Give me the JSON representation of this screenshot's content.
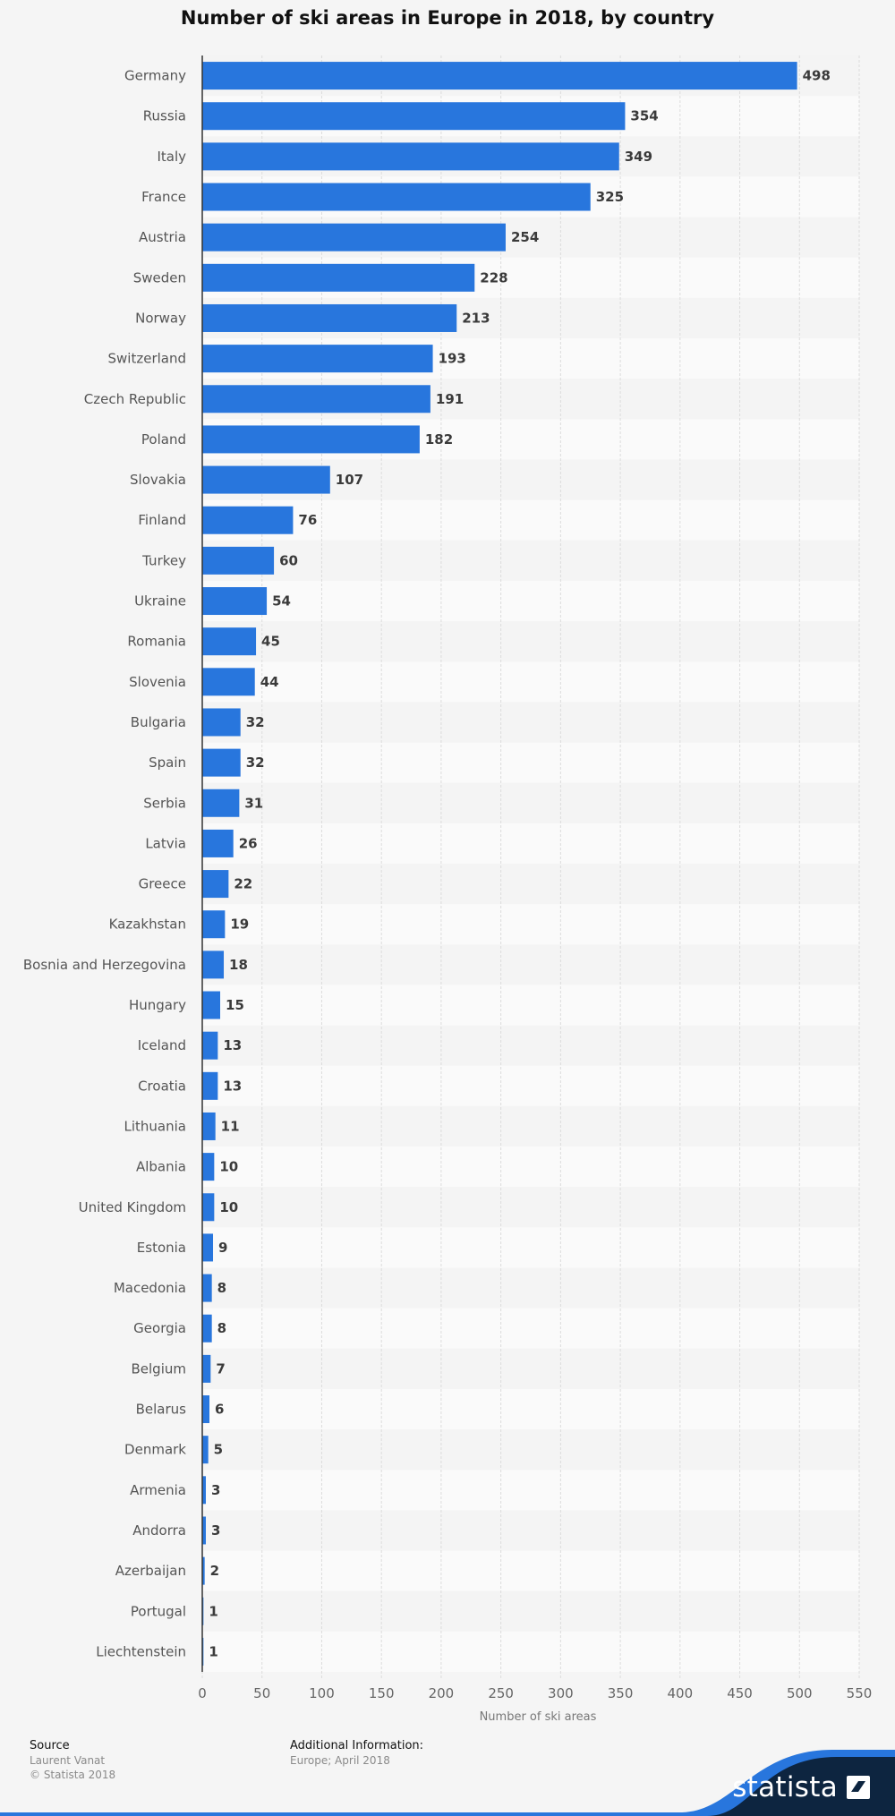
{
  "chart_data": {
    "type": "bar",
    "orientation": "horizontal",
    "title": "Number of ski areas in Europe in 2018, by country",
    "xlabel": "Number of ski areas",
    "ylabel": "",
    "xlim": [
      0,
      550
    ],
    "xticks": [
      "0",
      "50",
      "100",
      "150",
      "200",
      "250",
      "300",
      "350",
      "400",
      "450",
      "500",
      "550"
    ],
    "grid": true,
    "bar_color": "#2876dd",
    "categories": [
      "Germany",
      "Russia",
      "Italy",
      "France",
      "Austria",
      "Sweden",
      "Norway",
      "Switzerland",
      "Czech Republic",
      "Poland",
      "Slovakia",
      "Finland",
      "Turkey",
      "Ukraine",
      "Romania",
      "Slovenia",
      "Bulgaria",
      "Spain",
      "Serbia",
      "Latvia",
      "Greece",
      "Kazakhstan",
      "Bosnia and Herzegovina",
      "Hungary",
      "Iceland",
      "Croatia",
      "Lithuania",
      "Albania",
      "United Kingdom",
      "Estonia",
      "Macedonia",
      "Georgia",
      "Belgium",
      "Belarus",
      "Denmark",
      "Armenia",
      "Andorra",
      "Azerbaijan",
      "Portugal",
      "Liechtenstein"
    ],
    "values": [
      498,
      354,
      349,
      325,
      254,
      228,
      213,
      193,
      191,
      182,
      107,
      76,
      60,
      54,
      45,
      44,
      32,
      32,
      31,
      26,
      22,
      19,
      18,
      15,
      13,
      13,
      11,
      10,
      10,
      9,
      8,
      8,
      7,
      6,
      5,
      3,
      3,
      2,
      1,
      1
    ]
  },
  "footer": {
    "source_heading": "Source",
    "source_lines": [
      "Laurent Vanat",
      "© Statista 2018"
    ],
    "info_heading": "Additional Information:",
    "info_lines": [
      "Europe; April 2018"
    ]
  },
  "brand": {
    "name": "statista",
    "logo_icon": "statista-logo-icon",
    "dark_color": "#0d2540",
    "accent_color": "#2876dd"
  }
}
